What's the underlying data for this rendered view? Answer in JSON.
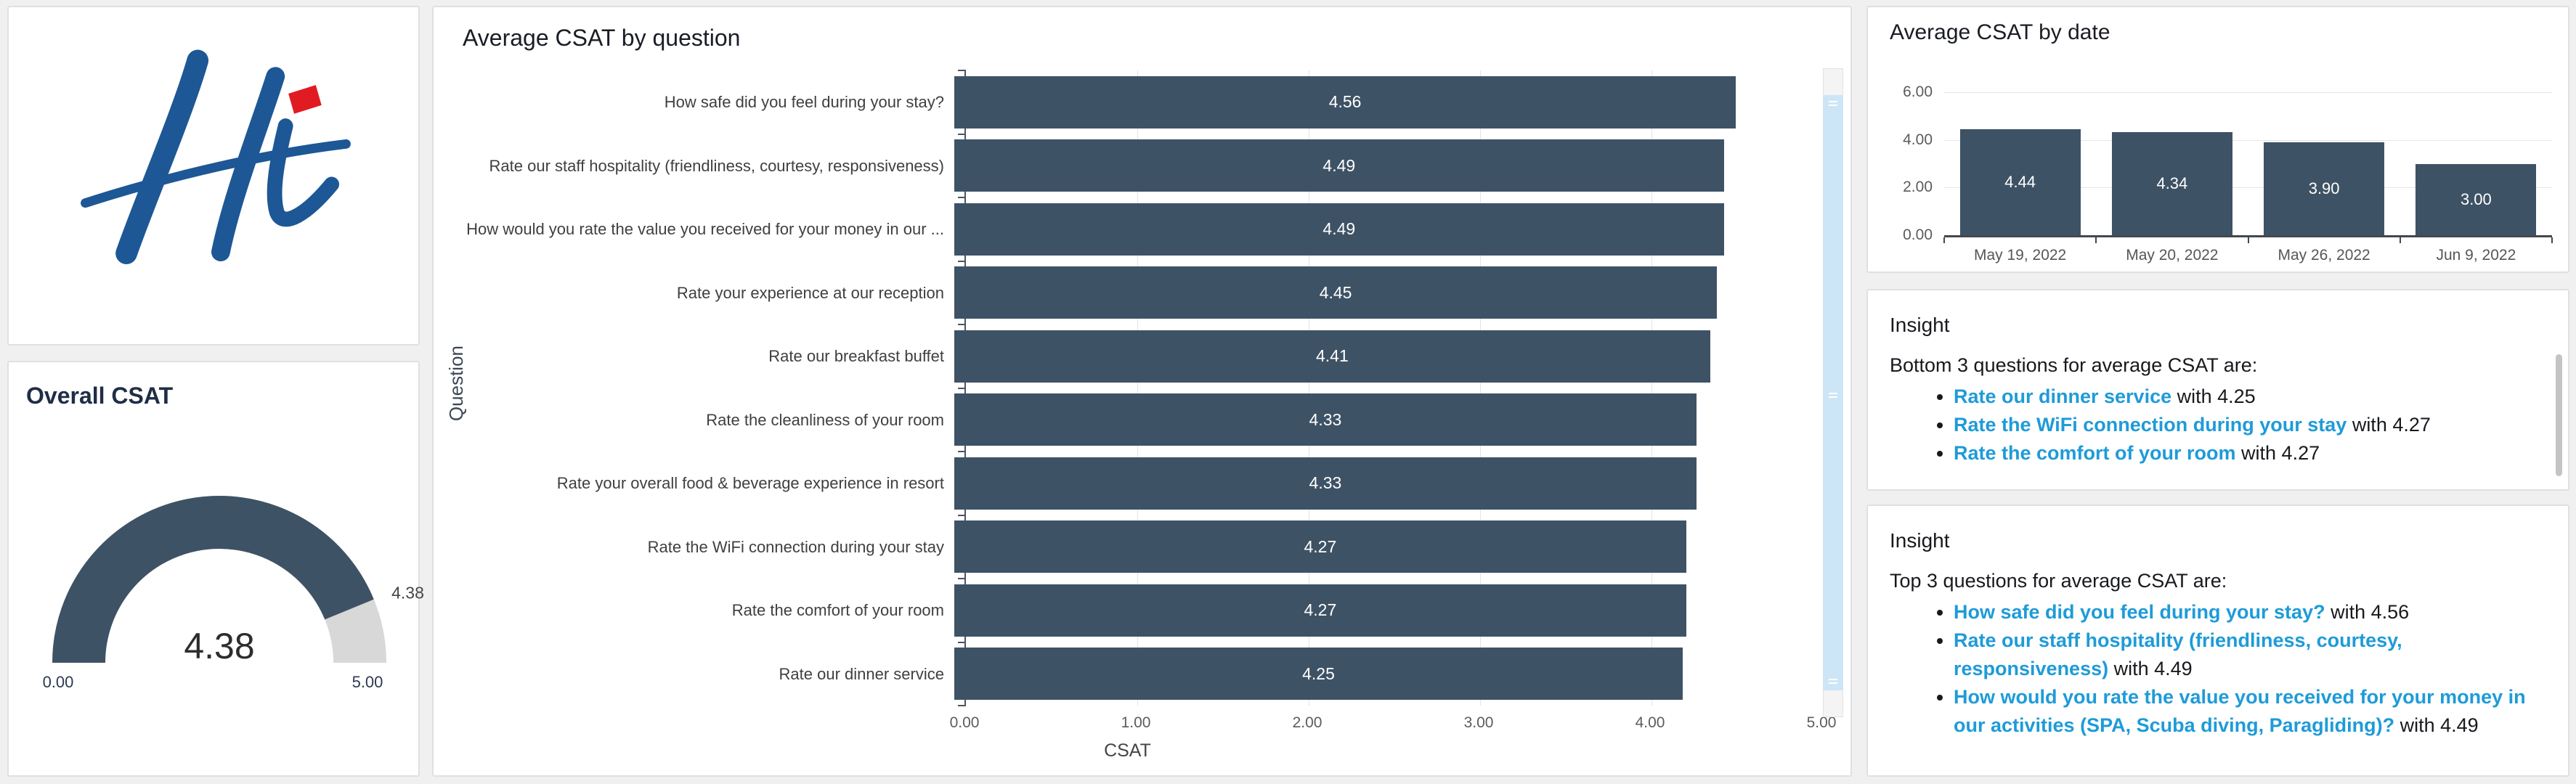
{
  "page": {
    "background": "#f0f0f1",
    "card_border": "#dfe0e2"
  },
  "colors": {
    "bar": "#3e5265",
    "gauge_track": "#d8d8d8",
    "link_blue": "#1e9bd8",
    "logo_blue": "#1d5795",
    "logo_red": "#e11b22",
    "grid": "#e3e3e3",
    "axis": "#4b5563",
    "value_label": "#ffffff"
  },
  "logo_card": {
    "alt": "Hi hotel logo"
  },
  "gauge_card": {
    "title": "Overall CSAT",
    "value": 4.38,
    "min": 0,
    "max": 5,
    "value_label": "4.38",
    "callout_label": "4.38",
    "min_label": "0.00",
    "max_label": "5.00"
  },
  "question_chart": {
    "title": "Average CSAT by question",
    "y_axis_title": "Question",
    "x_axis_title": "CSAT",
    "x_max": 5,
    "x_ticks": [
      "0.00",
      "1.00",
      "2.00",
      "3.00",
      "4.00",
      "5.00"
    ],
    "bars": [
      {
        "label": "How safe did you feel during your stay?",
        "value": 4.56,
        "value_label": "4.56"
      },
      {
        "label": "Rate our staff hospitality (friendliness, courtesy, responsiveness)",
        "value": 4.49,
        "value_label": "4.49"
      },
      {
        "label": "How would you rate the value you received for your money in our ...",
        "value": 4.49,
        "value_label": "4.49"
      },
      {
        "label": "Rate your experience at our reception",
        "value": 4.45,
        "value_label": "4.45"
      },
      {
        "label": "Rate our breakfast buffet",
        "value": 4.41,
        "value_label": "4.41"
      },
      {
        "label": "Rate the cleanliness of your room",
        "value": 4.33,
        "value_label": "4.33"
      },
      {
        "label": "Rate your overall food & beverage experience in resort",
        "value": 4.33,
        "value_label": "4.33"
      },
      {
        "label": "Rate the WiFi connection during your stay",
        "value": 4.27,
        "value_label": "4.27"
      },
      {
        "label": "Rate the comfort of your room",
        "value": 4.27,
        "value_label": "4.27"
      },
      {
        "label": "Rate our dinner service",
        "value": 4.25,
        "value_label": "4.25"
      }
    ]
  },
  "date_chart": {
    "title": "Average CSAT by date",
    "y_max": 6,
    "y_ticks": [
      {
        "label": "6.00",
        "value": 6
      },
      {
        "label": "4.00",
        "value": 4
      },
      {
        "label": "2.00",
        "value": 2
      },
      {
        "label": "0.00",
        "value": 0
      }
    ],
    "bars": [
      {
        "label": "May 19, 2022",
        "value": 4.44,
        "value_label": "4.44"
      },
      {
        "label": "May 20, 2022",
        "value": 4.34,
        "value_label": "4.34"
      },
      {
        "label": "May 26, 2022",
        "value": 3.9,
        "value_label": "3.90"
      },
      {
        "label": "Jun 9, 2022",
        "value": 3.0,
        "value_label": "3.00"
      }
    ]
  },
  "insight_bottom": {
    "title": "Insight",
    "intro": "Bottom 3 questions for average CSAT are:",
    "items": [
      {
        "link": "Rate our dinner service",
        "rest": " with 4.25"
      },
      {
        "link": "Rate the WiFi connection during your stay",
        "rest": " with 4.27"
      },
      {
        "link": "Rate the comfort of your room",
        "rest": " with 4.27"
      }
    ]
  },
  "insight_top": {
    "title": "Insight",
    "intro": "Top 3 questions for average CSAT are:",
    "items": [
      {
        "link": "How safe did you feel during your stay?",
        "rest": " with 4.56"
      },
      {
        "link": "Rate our staff hospitality (friendliness, courtesy, responsiveness)",
        "rest": " with 4.49"
      },
      {
        "link": "How would you rate the value you received for your money in our activities (SPA, Scuba diving, Paragliding)?",
        "rest": " with 4.49"
      }
    ]
  },
  "chart_data": [
    {
      "type": "gauge",
      "title": "Overall CSAT",
      "value": 4.38,
      "min": 0,
      "max": 5
    },
    {
      "type": "bar",
      "orientation": "horizontal",
      "title": "Average CSAT by question",
      "xlabel": "CSAT",
      "ylabel": "Question",
      "xlim": [
        0,
        5
      ],
      "grid": true,
      "categories": [
        "How safe did you feel during your stay?",
        "Rate our staff hospitality (friendliness, courtesy, responsiveness)",
        "How would you rate the value you received for your money in our ...",
        "Rate your experience at our reception",
        "Rate our breakfast buffet",
        "Rate the cleanliness of your room",
        "Rate your overall food & beverage experience in resort",
        "Rate the WiFi connection during your stay",
        "Rate the comfort of your room",
        "Rate our dinner service"
      ],
      "values": [
        4.56,
        4.49,
        4.49,
        4.45,
        4.41,
        4.33,
        4.33,
        4.27,
        4.27,
        4.25
      ]
    },
    {
      "type": "bar",
      "orientation": "vertical",
      "title": "Average CSAT by date",
      "xlabel": "",
      "ylabel": "",
      "ylim": [
        0,
        6
      ],
      "grid": true,
      "categories": [
        "May 19, 2022",
        "May 20, 2022",
        "May 26, 2022",
        "Jun 9, 2022"
      ],
      "values": [
        4.44,
        4.34,
        3.9,
        3.0
      ]
    }
  ]
}
